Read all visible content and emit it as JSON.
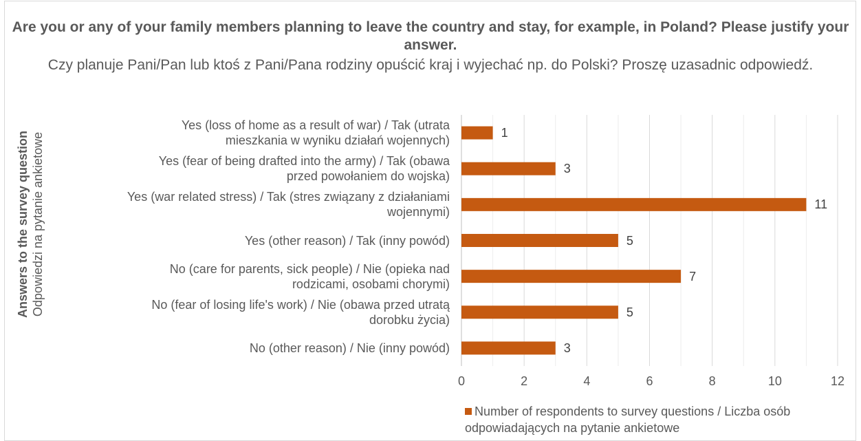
{
  "chart_data": {
    "type": "bar",
    "orientation": "horizontal",
    "title": "Are you or any of your family members planning to leave the country and stay, for example, in Poland? Please justify your answer.",
    "subtitle": "Czy planuje Pani/Pan lub ktoś z Pani/Pana rodziny opuścić kraj i wyjechać np. do Polski? Proszę uzasadnic odpowiedź.",
    "ylabel_bold": "Answers to the survey question",
    "ylabel_normal": "Odpowiedzi na pytanie ankietowe",
    "xlabel": "",
    "xlim": [
      0,
      12
    ],
    "xticks": [
      "0",
      "2",
      "4",
      "6",
      "8",
      "10",
      "12"
    ],
    "grid": "vertical",
    "legend_position": "bottom",
    "bar_color": "#c55a11",
    "categories": [
      [
        "Yes (loss of home as a result of war) / Tak (utrata",
        "mieszkania w wyniku działań wojennych)"
      ],
      [
        "Yes (fear of being drafted into the army) / Tak (obawa",
        "przed powołaniem do wojska)"
      ],
      [
        "Yes (war related stress) / Tak (stres związany z działaniami",
        "wojennymi)"
      ],
      [
        "Yes (other reason) / Tak (inny powód)"
      ],
      [
        "No (care for parents, sick people) / Nie (opieka nad",
        "rodzicami, osobami chorymi)"
      ],
      [
        "No (fear of losing life's work) / Nie (obawa przed utratą",
        "dorobku życia)"
      ],
      [
        "No (other reason) / Nie (inny powód)"
      ]
    ],
    "series": [
      {
        "name": "Number of respondents to survey questions / Liczba osób odpowiadających na pytanie ankietowe",
        "values": [
          1,
          3,
          11,
          5,
          7,
          5,
          3
        ],
        "data_labels": [
          "1",
          "3",
          "11",
          "5",
          "7",
          "5",
          "3"
        ]
      }
    ]
  }
}
